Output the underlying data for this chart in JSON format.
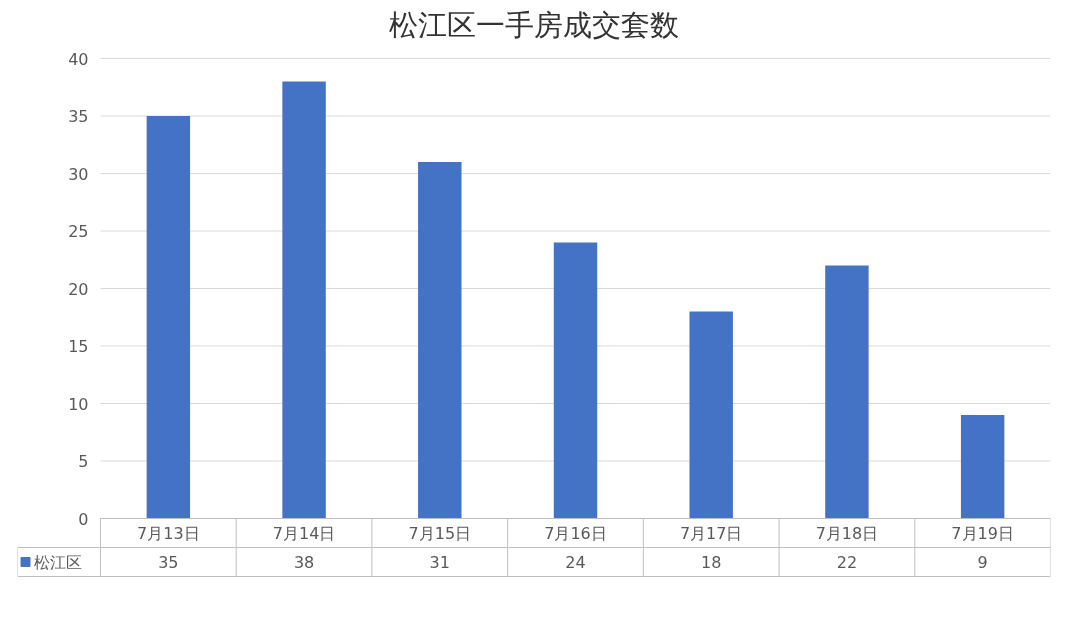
{
  "chart_data": {
    "type": "bar",
    "title": "松江区一手房成交套数",
    "categories": [
      "7月13日",
      "7月14日",
      "7月15日",
      "7月16日",
      "7月17日",
      "7月18日",
      "7月19日"
    ],
    "series": [
      {
        "name": "松江区",
        "color": "#4472c4",
        "values": [
          35,
          38,
          31,
          24,
          18,
          22,
          9
        ]
      }
    ],
    "ylim": [
      0,
      40
    ],
    "yticks": [
      0,
      5,
      10,
      15,
      20,
      25,
      30,
      35,
      40
    ],
    "grid": "y",
    "data_labels": true,
    "legend": "bottom left"
  }
}
